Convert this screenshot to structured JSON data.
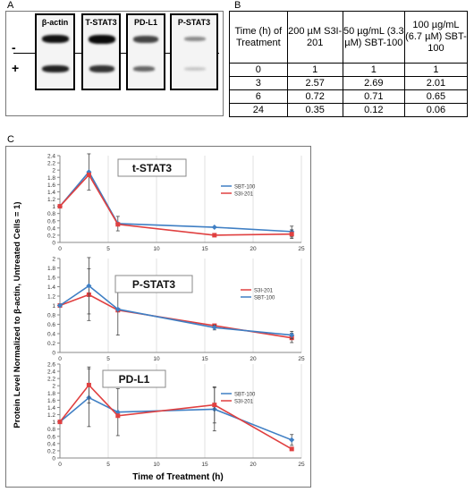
{
  "panel_a": {
    "label": "A",
    "sign_minus": "-",
    "sign_plus": "+",
    "blots": [
      {
        "name": "β-actin"
      },
      {
        "name": "T-STAT3"
      },
      {
        "name": "PD-L1"
      },
      {
        "name": "P-STAT3"
      }
    ]
  },
  "panel_b": {
    "label": "B",
    "headers": [
      "Time (h) of Treatment",
      "200 µM S3I-201",
      "50 µg/mL (3.3 µM) SBT-100",
      "100 µg/mL (6.7 µM) SBT-100"
    ],
    "rows": [
      [
        "0",
        "1",
        "1",
        "1"
      ],
      [
        "3",
        "2.57",
        "2.69",
        "2.01"
      ],
      [
        "6",
        "0.72",
        "0.71",
        "0.65"
      ],
      [
        "24",
        "0.35",
        "0.12",
        "0.06"
      ]
    ]
  },
  "panel_c": {
    "label": "C",
    "ylabel": "Protein Level Normalized to β-actin, Untreated Cells = 1)",
    "xlabel": "Time of Treatment  (h)"
  },
  "colors": {
    "sbt100": "#3f7fc4",
    "s3i201": "#e04040"
  },
  "chart_data": [
    {
      "type": "line",
      "title": "t-STAT3",
      "x": [
        0,
        3,
        6,
        16,
        24
      ],
      "xlim": [
        0,
        25
      ],
      "xticks": [
        "0",
        "5",
        "10",
        "15",
        "20",
        "25"
      ],
      "ylim": [
        0,
        2.4
      ],
      "yticks": [
        "0",
        "0.2",
        "0.4",
        "0.6",
        "0.8",
        "1",
        "1.2",
        "1.4",
        "1.6",
        "1.8",
        "2",
        "2.2",
        "2.4"
      ],
      "legend_position": "right",
      "series": [
        {
          "name": "SBT-100",
          "color": "#3f7fc4",
          "values": [
            1,
            1.95,
            0.52,
            0.42,
            0.3
          ],
          "err": [
            0,
            0.5,
            0.2,
            0,
            0.15
          ]
        },
        {
          "name": "S3I-201",
          "color": "#e04040",
          "values": [
            1,
            1.87,
            0.5,
            0.2,
            0.23
          ],
          "err": [
            0,
            0,
            0,
            0,
            0.12
          ]
        }
      ]
    },
    {
      "type": "line",
      "title": "P-STAT3",
      "x": [
        0,
        3,
        6,
        16,
        24
      ],
      "xlim": [
        0,
        25
      ],
      "xticks": [
        "0",
        "5",
        "10",
        "15",
        "20",
        "25"
      ],
      "ylim": [
        0,
        2
      ],
      "yticks": [
        "0",
        "0.2",
        "0.4",
        "0.6",
        "0.8",
        "1",
        "1.2",
        "1.4",
        "1.6",
        "1.8",
        "2"
      ],
      "legend_position": "right",
      "series": [
        {
          "name": "S3I-201",
          "color": "#e04040",
          "values": [
            1,
            1.23,
            0.9,
            0.57,
            0.31
          ],
          "err": [
            0,
            0.55,
            0,
            0,
            0.1
          ]
        },
        {
          "name": "SBT-100",
          "color": "#3f7fc4",
          "values": [
            1,
            1.42,
            0.92,
            0.53,
            0.37
          ],
          "err": [
            0,
            0.6,
            0.55,
            0.05,
            0.08
          ]
        }
      ]
    },
    {
      "type": "line",
      "title": "PD-L1",
      "x": [
        0,
        3,
        6,
        16,
        24
      ],
      "xlim": [
        0,
        25
      ],
      "xticks": [
        "0",
        "5",
        "10",
        "15",
        "20",
        "25"
      ],
      "ylim": [
        0,
        2.6
      ],
      "yticks": [
        "0",
        "0.2",
        "0.4",
        "0.6",
        "0.8",
        "1",
        "1.2",
        "1.4",
        "1.6",
        "1.8",
        "2",
        "2.2",
        "2.4",
        "2.6"
      ],
      "legend_position": "right",
      "series": [
        {
          "name": "SBT-100",
          "color": "#3f7fc4",
          "values": [
            1,
            1.67,
            1.27,
            1.35,
            0.5
          ],
          "err": [
            0,
            0.8,
            0.65,
            0.6,
            0.15
          ]
        },
        {
          "name": "S3I-201",
          "color": "#e04040",
          "values": [
            1,
            2.02,
            1.17,
            1.47,
            0.25
          ],
          "err": [
            0,
            0.5,
            0,
            0.5,
            0
          ]
        }
      ]
    }
  ]
}
